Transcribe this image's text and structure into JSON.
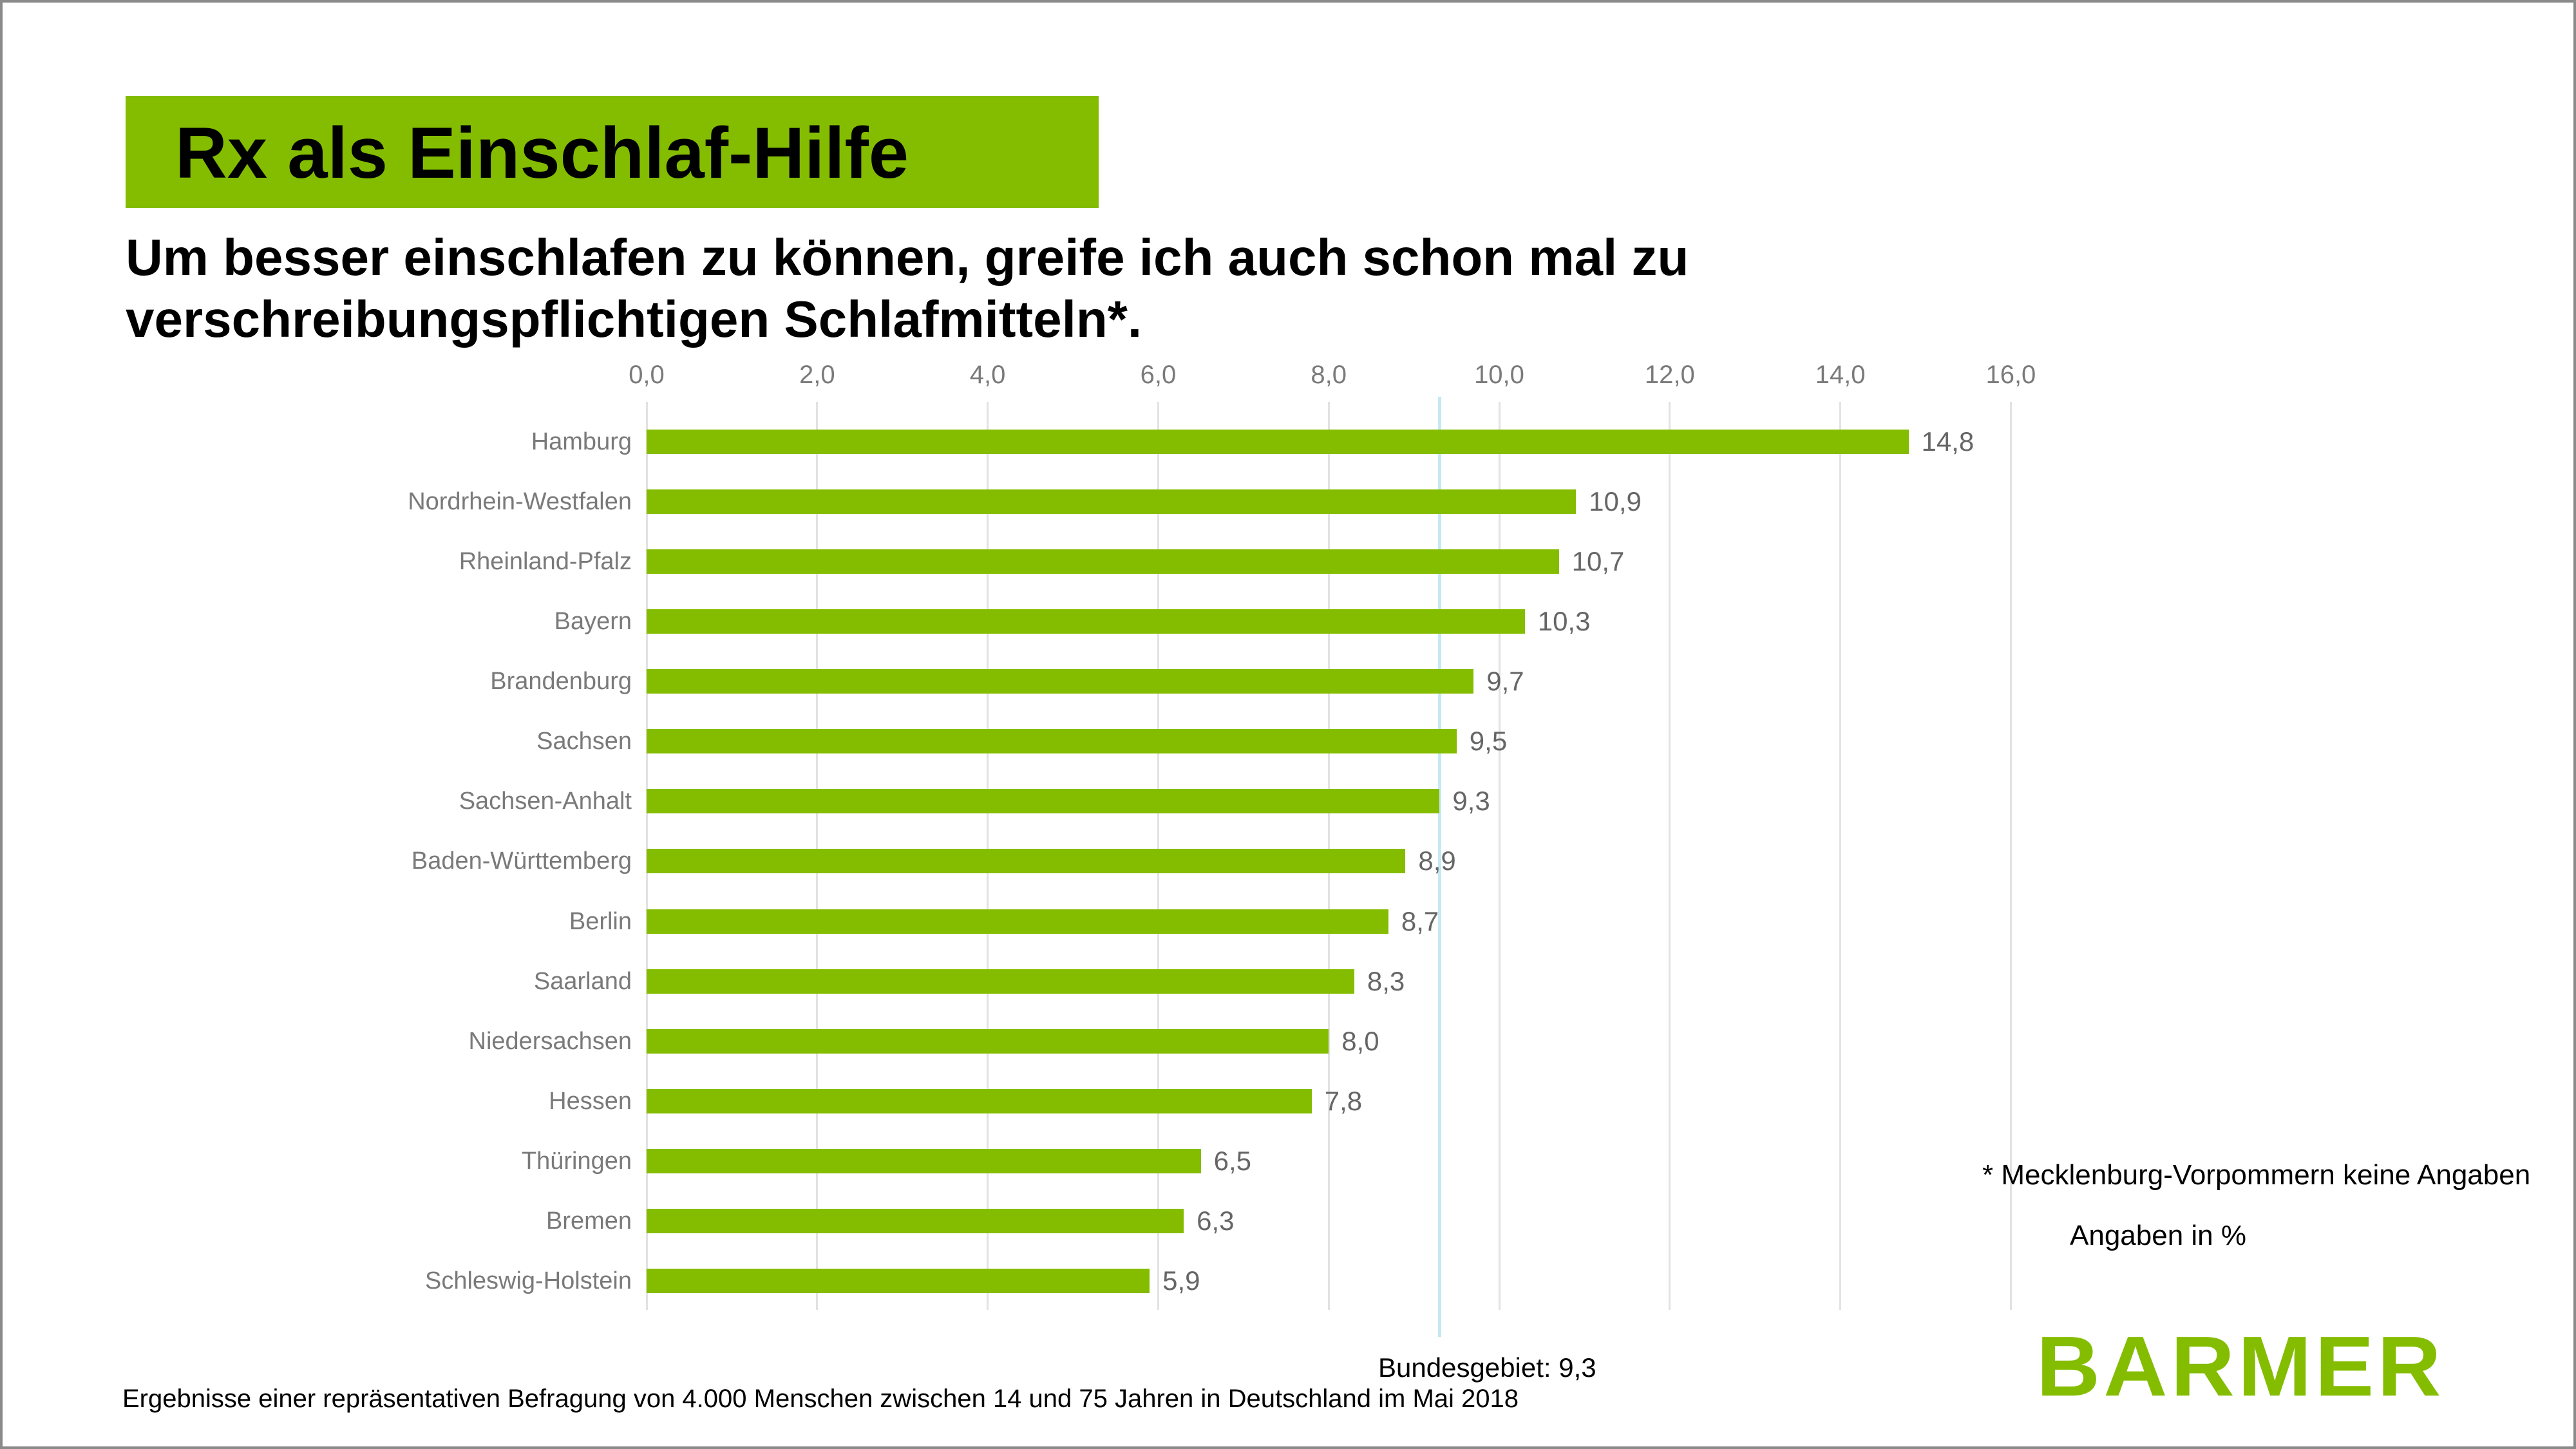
{
  "header": {
    "title": "Rx als Einschlaf-Hilfe",
    "subtitle_line1": "Um besser einschlafen zu können, greife ich auch schon mal zu",
    "subtitle_line2": "verschreibungspflichtigen Schlafmitteln*."
  },
  "chart_data": {
    "type": "bar",
    "orientation": "horizontal",
    "title": "Rx als Einschlaf-Hilfe",
    "categories": [
      "Hamburg",
      "Nordrhein-Westfalen",
      "Rheinland-Pfalz",
      "Bayern",
      "Brandenburg",
      "Sachsen",
      "Sachsen-Anhalt",
      "Baden-Württemberg",
      "Berlin",
      "Saarland",
      "Niedersachsen",
      "Hessen",
      "Thüringen",
      "Bremen",
      "Schleswig-Holstein"
    ],
    "values": [
      14.8,
      10.9,
      10.7,
      10.3,
      9.7,
      9.5,
      9.3,
      8.9,
      8.7,
      8.3,
      8.0,
      7.8,
      6.5,
      6.3,
      5.9
    ],
    "value_labels": [
      "14,8",
      "10,9",
      "10,7",
      "10,3",
      "9,7",
      "9,5",
      "9,3",
      "8,9",
      "8,7",
      "8,3",
      "8,0",
      "7,8",
      "6,5",
      "6,3",
      "5,9"
    ],
    "x_ticks": [
      "0,0",
      "2,0",
      "4,0",
      "6,0",
      "8,0",
      "10,0",
      "12,0",
      "14,0",
      "16,0"
    ],
    "xlim": [
      0,
      16
    ],
    "grid": true,
    "units": "%",
    "legend": "none",
    "reference_line": {
      "value": 9.3,
      "label": "Bundesgebiet: 9,3"
    }
  },
  "annotations": {
    "bundesgebiet_label": "Bundesgebiet: 9,3",
    "footnote_right_1": "* Mecklenburg-Vorpommern keine Angaben",
    "footnote_right_2": "Angaben in %",
    "source": "Ergebnisse einer repräsentativen Befragung von 4.000 Menschen zwischen 14 und 75 Jahren in Deutschland im Mai 2018"
  },
  "logo": {
    "text": "BARMER"
  },
  "colors": {
    "brand_green": "#84BD00",
    "grid_gray": "#e2e2e2",
    "reference_blue": "#c5e9f4",
    "label_gray": "#7a7a7a",
    "value_gray": "#666666",
    "frame_gray": "#8a8a8a"
  }
}
